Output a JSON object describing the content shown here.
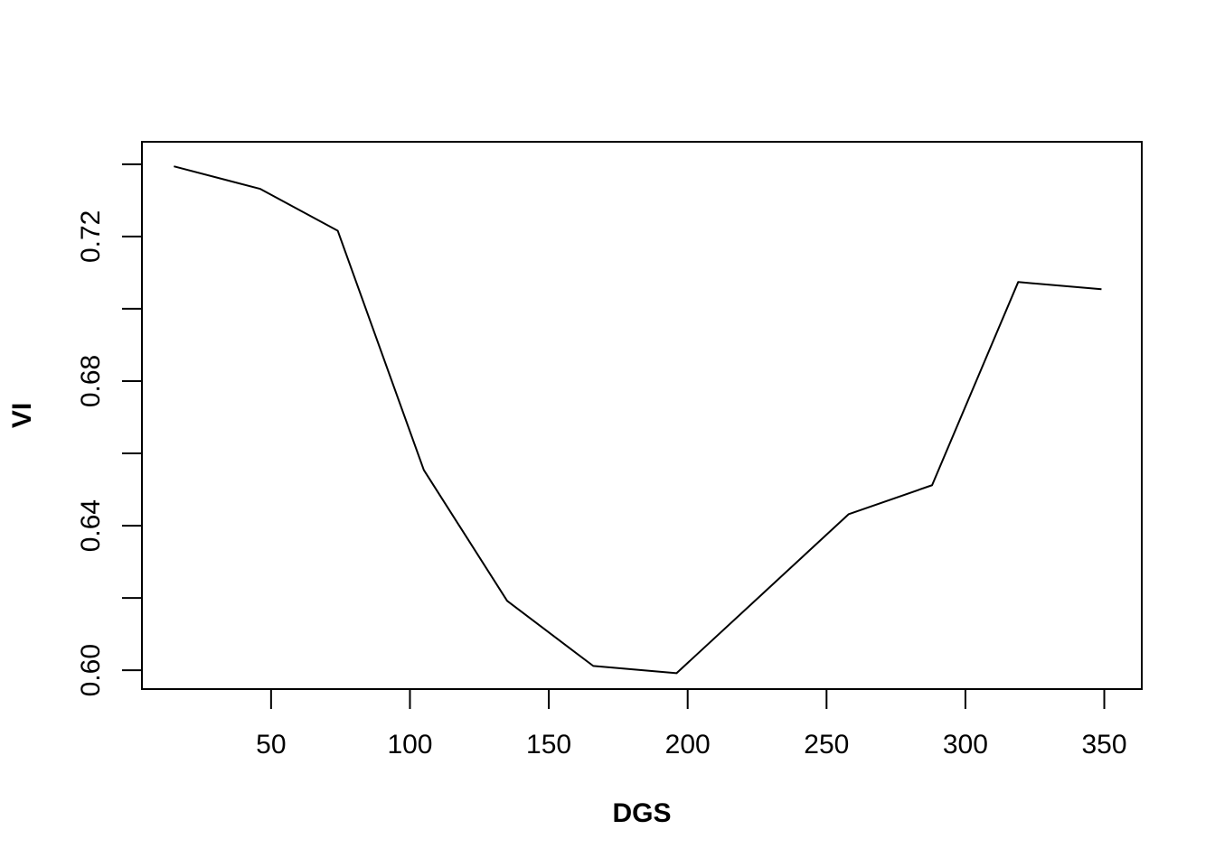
{
  "chart_data": {
    "type": "line",
    "title": "",
    "xlabel": "DGS",
    "ylabel": "VI",
    "xlim": [
      3.5,
      363.5
    ],
    "ylim": [
      0.5948,
      0.7462
    ],
    "xticks": [
      50,
      100,
      150,
      200,
      250,
      300,
      350
    ],
    "yticks": [
      0.6,
      0.62,
      0.64,
      0.66,
      0.68,
      0.7,
      0.72,
      0.74
    ],
    "yticks_labeled": [
      "0.60",
      "0.64",
      "0.68",
      "0.72"
    ],
    "grid": false,
    "series": [
      {
        "color": "#000000",
        "x": [
          15,
          46,
          74,
          105,
          135,
          166,
          196,
          227,
          258,
          288,
          319,
          349
        ],
        "y": [
          0.7394,
          0.7332,
          0.7216,
          0.6554,
          0.6192,
          0.6012,
          0.5992,
          0.6212,
          0.6432,
          0.6512,
          0.7074,
          0.7054
        ]
      }
    ]
  }
}
